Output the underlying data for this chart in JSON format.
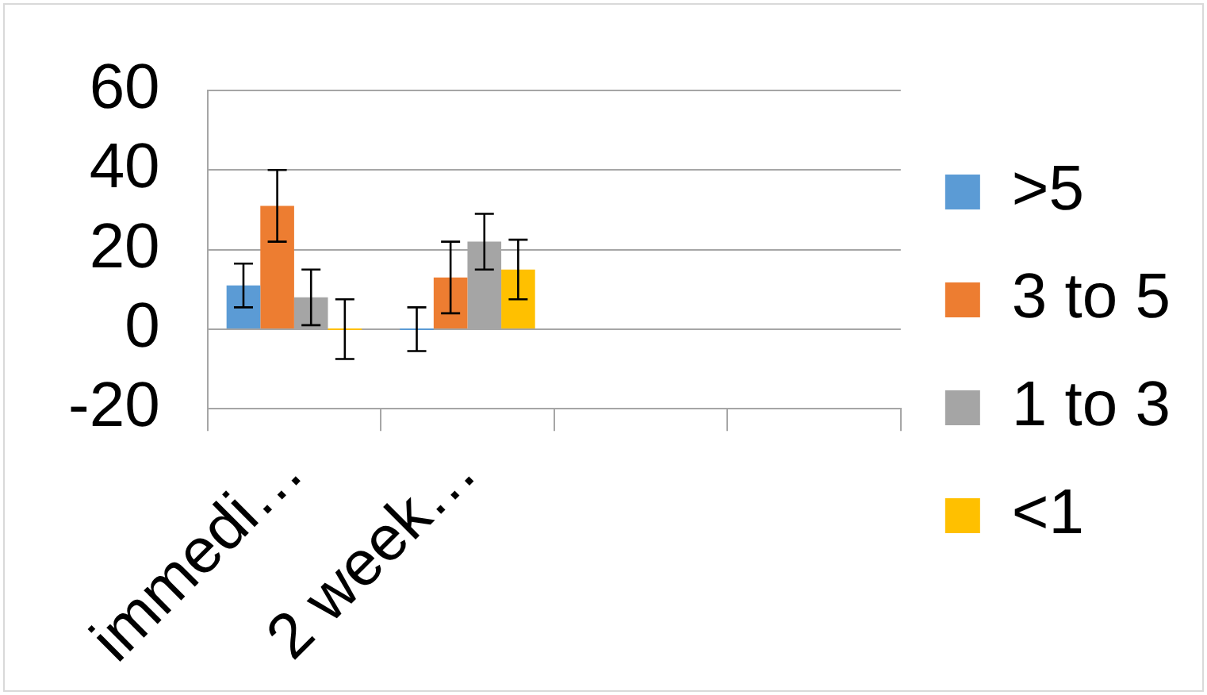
{
  "chart_data": {
    "type": "bar",
    "categories": [
      "immedi…",
      "2 week…",
      null,
      null
    ],
    "series": [
      {
        "name": ">5",
        "color": "#5b9bd5",
        "values": [
          11,
          0,
          null,
          null
        ],
        "errors": [
          5.5,
          5.5,
          null,
          null
        ]
      },
      {
        "name": "3 to 5",
        "color": "#ed7d31",
        "values": [
          31,
          13,
          null,
          null
        ],
        "errors": [
          9,
          9,
          null,
          null
        ]
      },
      {
        "name": "1 to 3",
        "color": "#a5a5a5",
        "values": [
          8,
          22,
          null,
          null
        ],
        "errors": [
          7,
          7,
          null,
          null
        ]
      },
      {
        "name": "<1",
        "color": "#ffc000",
        "values": [
          0,
          15,
          null,
          null
        ],
        "errors": [
          7.5,
          7.5,
          null,
          null
        ]
      }
    ],
    "ylim": [
      -20,
      60
    ],
    "yticks": [
      -20,
      0,
      20,
      40,
      60
    ],
    "grid": "y",
    "legend": "right"
  }
}
